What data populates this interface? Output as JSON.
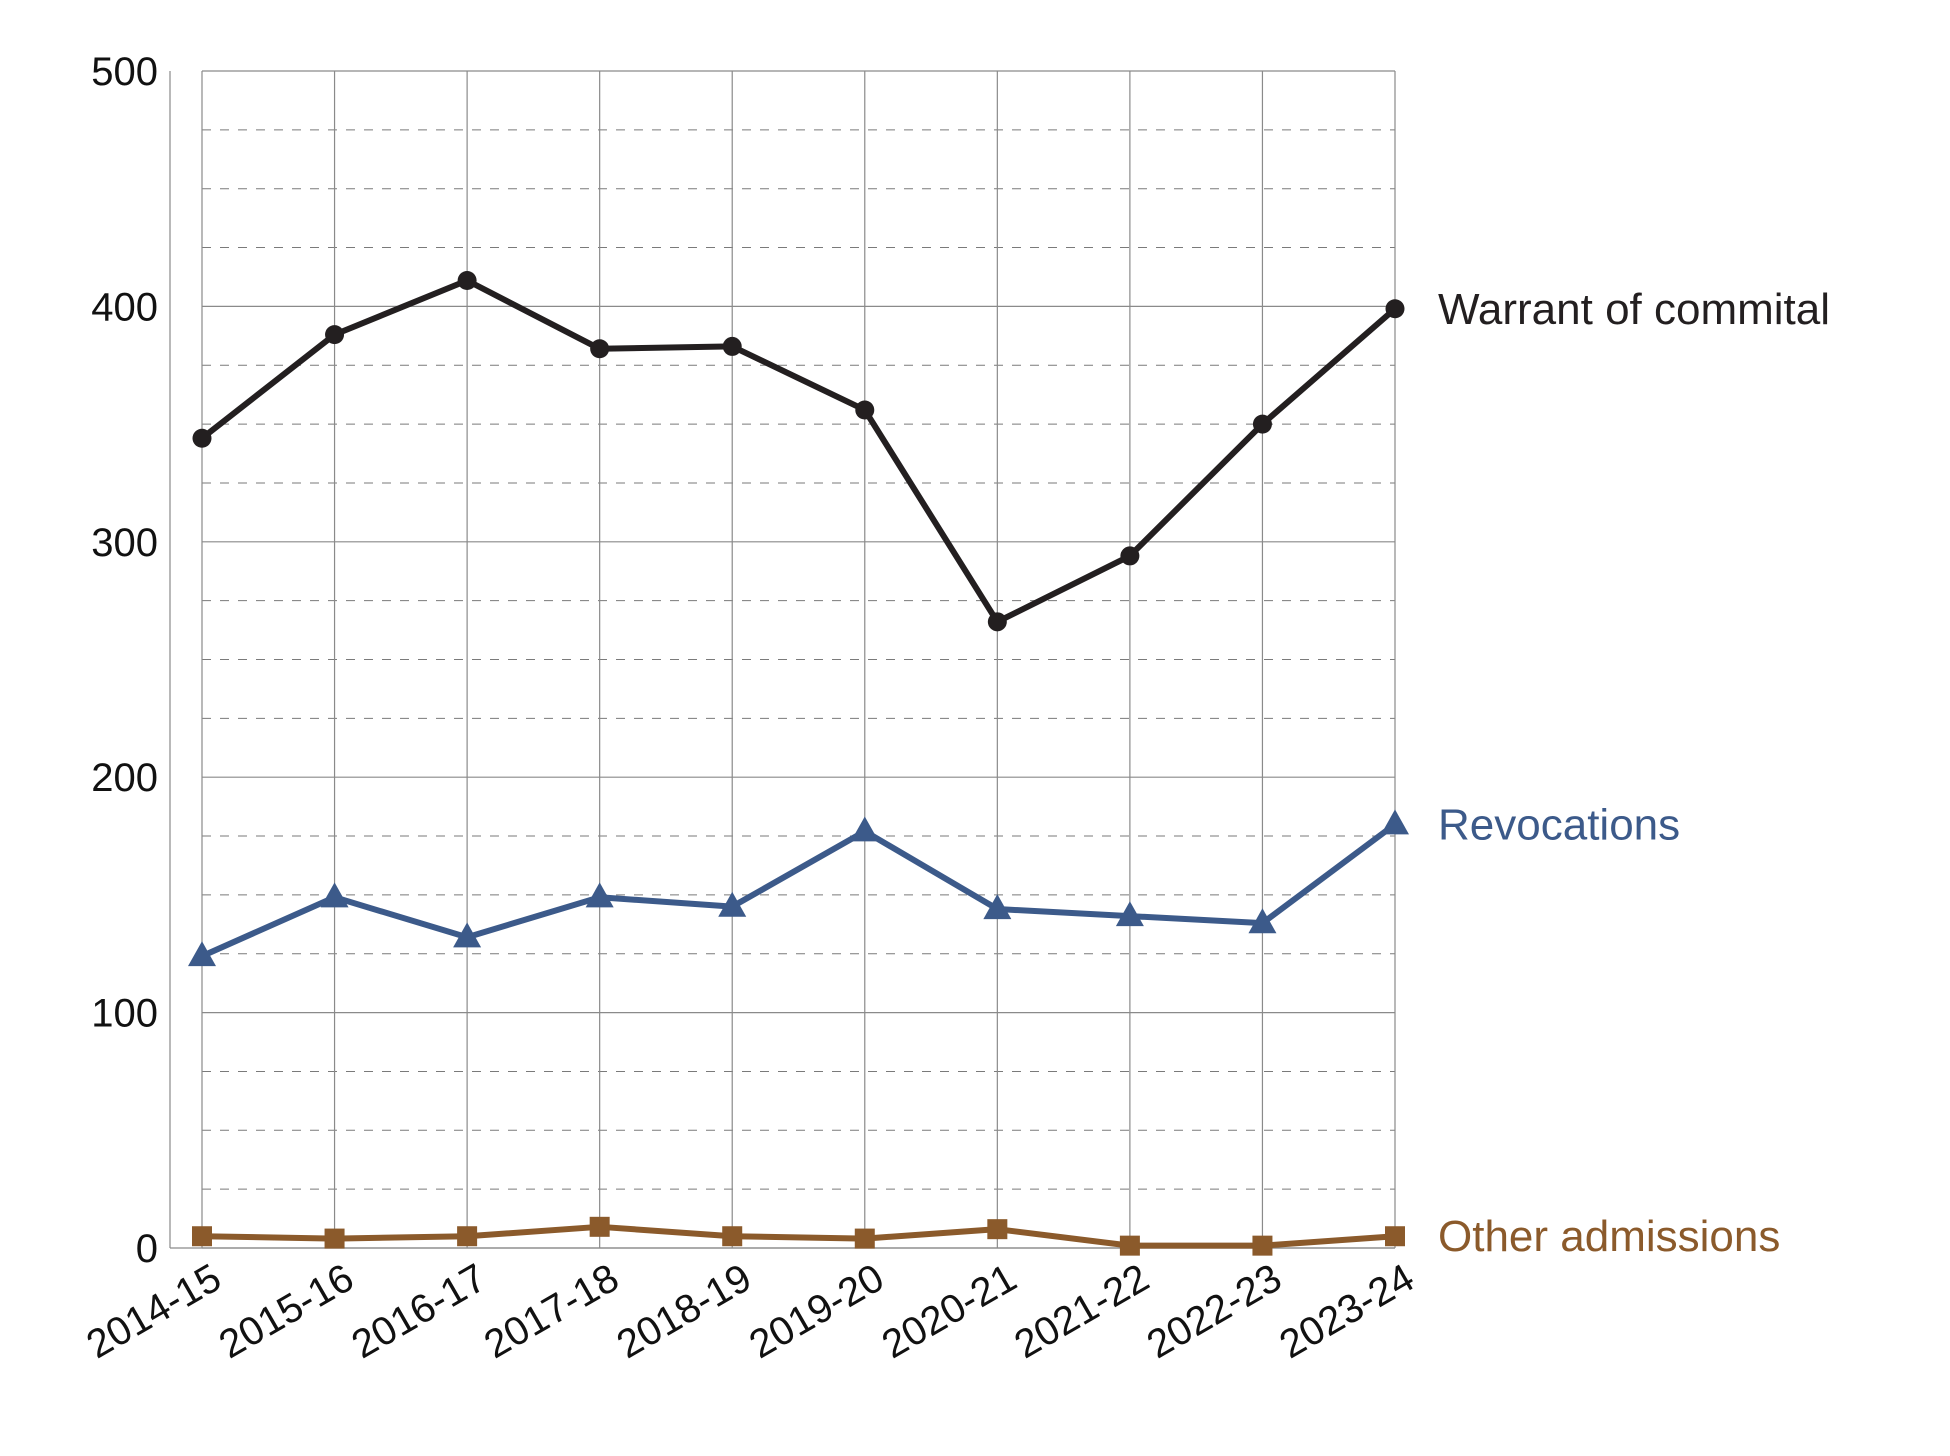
{
  "chart_data": {
    "type": "line",
    "title": "",
    "xlabel": "",
    "ylabel": "",
    "categories": [
      "2014-15",
      "2015-16",
      "2016-17",
      "2017-18",
      "2018-19",
      "2019-20",
      "2020-21",
      "2021-22",
      "2022-23",
      "2023-24"
    ],
    "ylim": [
      0,
      500
    ],
    "y_ticks": [
      "0",
      "100",
      "200",
      "300",
      "400",
      "500"
    ],
    "grid": true,
    "legend": "end-of-line labels",
    "series": [
      {
        "name": "Warrant of commital",
        "color": "#231f20",
        "marker": "circle",
        "values": [
          344,
          388,
          411,
          382,
          383,
          356,
          266,
          294,
          350,
          399
        ]
      },
      {
        "name": "Revocations",
        "color": "#3c5a8a",
        "marker": "triangle",
        "values": [
          124,
          149,
          132,
          149,
          145,
          177,
          144,
          141,
          138,
          180
        ]
      },
      {
        "name": "Other admissions",
        "color": "#8b5a2b",
        "marker": "square",
        "values": [
          5,
          4,
          5,
          9,
          5,
          4,
          8,
          1,
          1,
          5
        ]
      }
    ]
  }
}
